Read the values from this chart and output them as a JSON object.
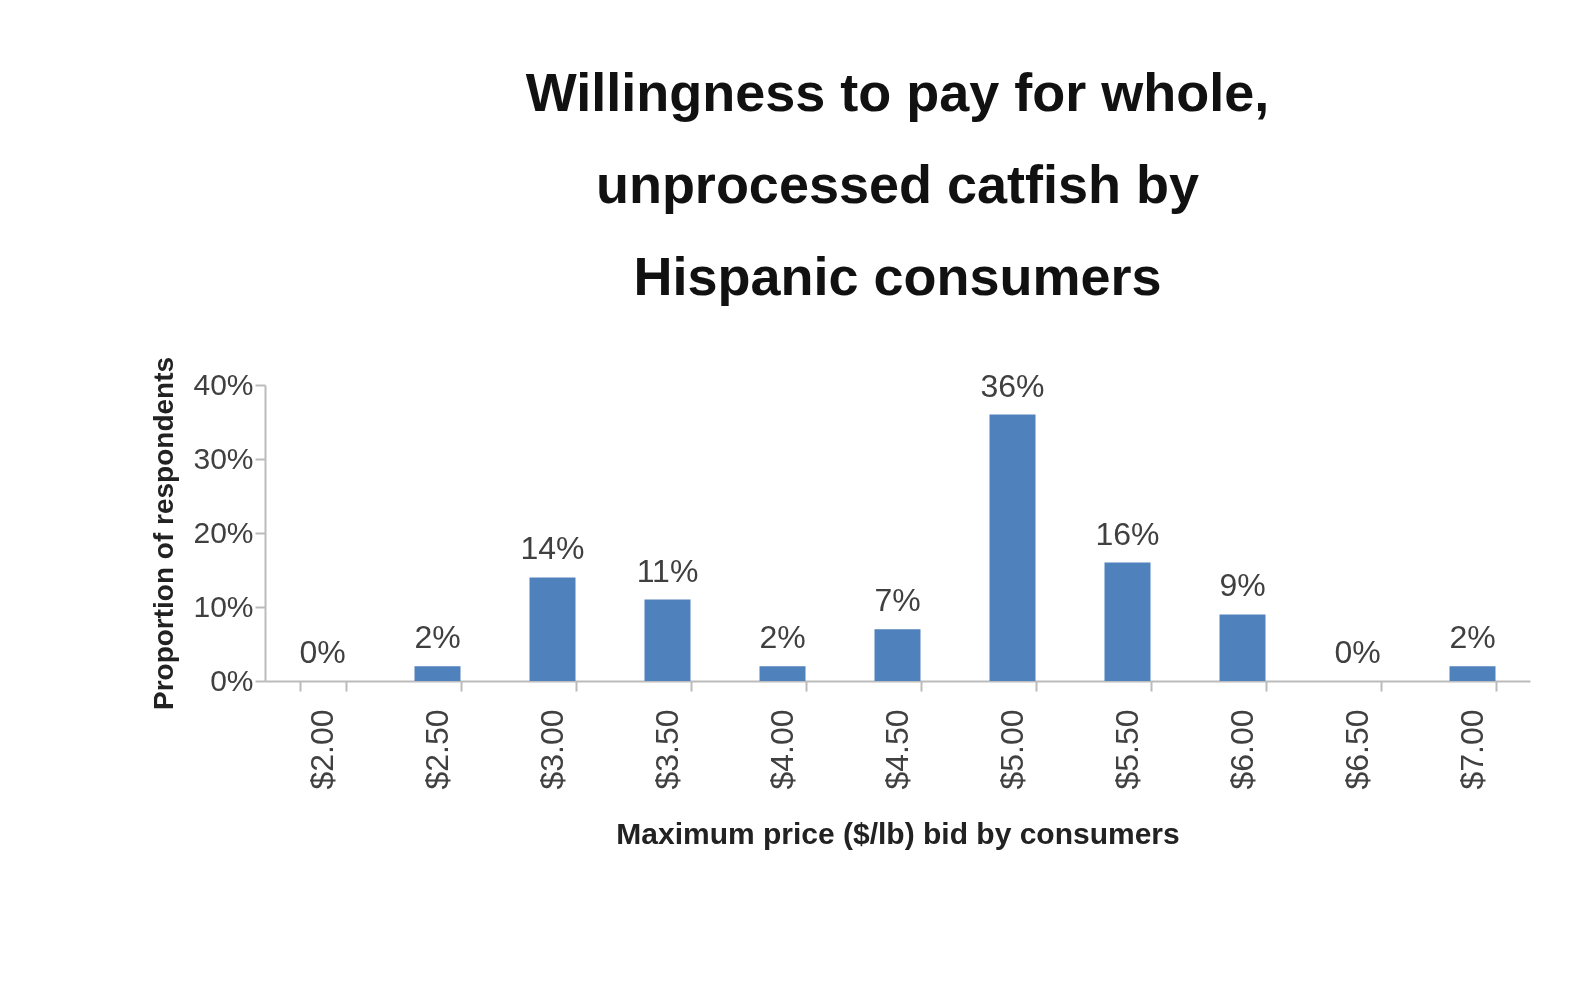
{
  "chart_data": {
    "type": "bar",
    "title": "Willingness to pay for whole, unprocessed catfish by Hispanic consumers",
    "xlabel": "Maximum price ($/lb) bid by consumers",
    "ylabel": "Proportion of respondents",
    "categories": [
      "$2.00",
      "$2.50",
      "$3.00",
      "$3.50",
      "$4.00",
      "$4.50",
      "$5.00",
      "$5.50",
      "$6.00",
      "$6.50",
      "$7.00"
    ],
    "values": [
      0,
      2,
      14,
      11,
      2,
      7,
      36,
      16,
      9,
      0,
      2
    ],
    "value_labels": [
      "0%",
      "2%",
      "14%",
      "11%",
      "2%",
      "7%",
      "36%",
      "16%",
      "9%",
      "0%",
      "2%"
    ],
    "color": "#4f81bd",
    "ylim": [
      0,
      40
    ],
    "yticks": [
      {
        "value": 0,
        "label": "0%"
      },
      {
        "value": 10,
        "label": "10%"
      },
      {
        "value": 20,
        "label": "20%"
      },
      {
        "value": 30,
        "label": "30%"
      },
      {
        "value": 40,
        "label": "40%"
      }
    ],
    "grid": false
  }
}
